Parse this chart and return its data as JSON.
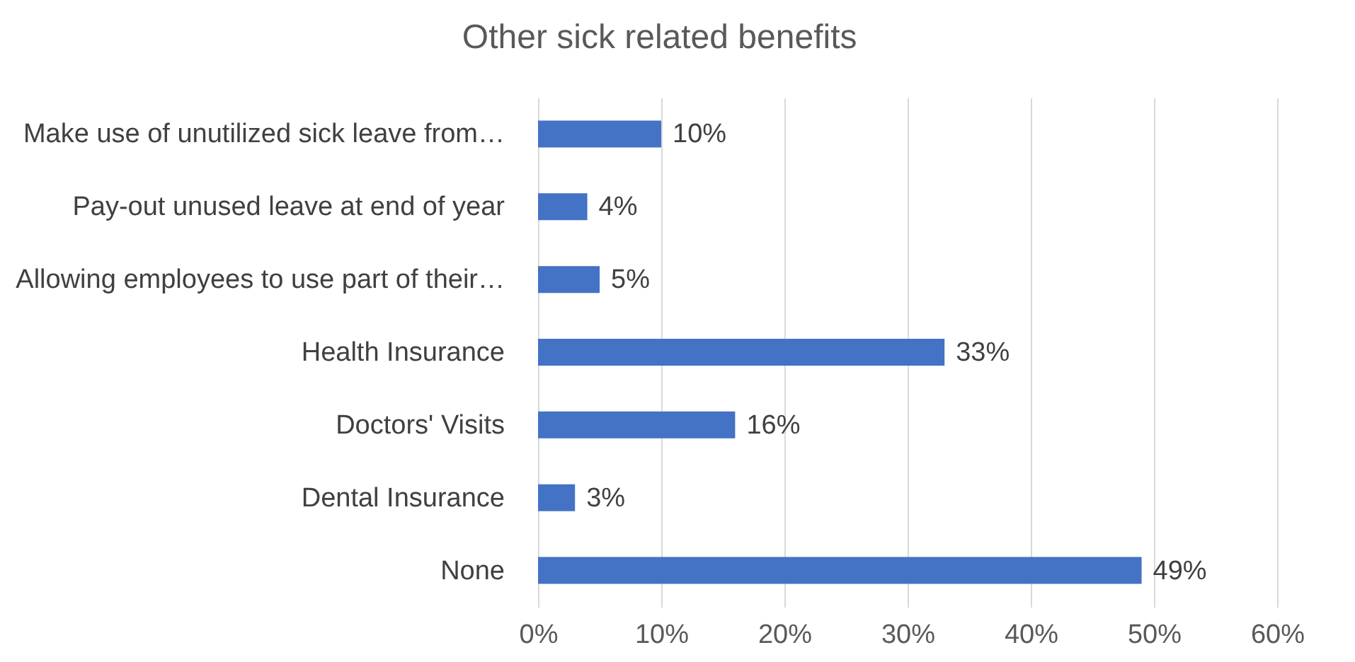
{
  "chart_data": {
    "type": "bar",
    "orientation": "horizontal",
    "title": "Other sick related benefits",
    "categories": [
      "Make use of unutilized sick leave from…",
      "Pay-out unused leave at end of year",
      "Allowing employees to use part of their…",
      "Health Insurance",
      "Doctors' Visits",
      "Dental Insurance",
      "None"
    ],
    "values": [
      10,
      4,
      5,
      33,
      16,
      3,
      49
    ],
    "value_labels": [
      "10%",
      "4%",
      "5%",
      "33%",
      "16%",
      "3%",
      "49%"
    ],
    "color": "#4472c4",
    "xlim": [
      0,
      60
    ],
    "xticks": [
      {
        "value": 0,
        "label": "0%"
      },
      {
        "value": 10,
        "label": "10%"
      },
      {
        "value": 20,
        "label": "20%"
      },
      {
        "value": 30,
        "label": "30%"
      },
      {
        "value": 40,
        "label": "40%"
      },
      {
        "value": 50,
        "label": "50%"
      },
      {
        "value": 60,
        "label": "60%"
      }
    ],
    "grid": "x"
  }
}
